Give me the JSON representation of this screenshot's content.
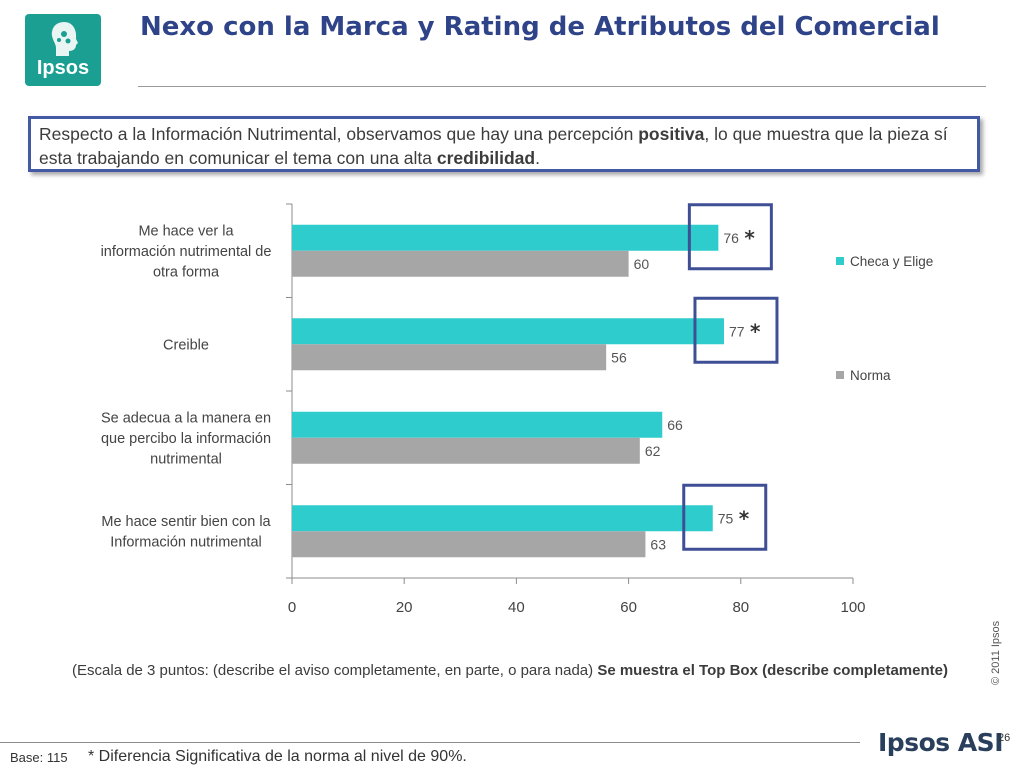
{
  "logo": {
    "text": "Ipsos"
  },
  "header": {
    "title": "Nexo con la Marca y Rating de Atributos del Comercial"
  },
  "callout": {
    "part1": "Respecto a la Información Nutrimental, observamos que hay una percepción ",
    "bold1": "positiva",
    "part2": ", lo que muestra que la pieza sí esta trabajando en comunicar el tema con una alta ",
    "bold2": "credibilidad",
    "part3": "."
  },
  "chart_data": {
    "type": "bar",
    "orientation": "horizontal",
    "categories": [
      [
        "Me hace ver  la",
        "información  nutrimental de",
        "otra forma"
      ],
      [
        "Creible"
      ],
      [
        "Se adecua a la manera en",
        "que percibo la información",
        "nutrimental"
      ],
      [
        "Me hace sentir bien con la",
        "Información  nutrimental"
      ]
    ],
    "series": [
      {
        "name": "Checa y Elige",
        "color": "#2ecccc",
        "values": [
          76,
          77,
          66,
          75
        ]
      },
      {
        "name": "Norma",
        "color": "#a6a6a6",
        "values": [
          60,
          56,
          62,
          63
        ]
      }
    ],
    "significant": [
      true,
      true,
      false,
      true
    ],
    "significance_marker": "*",
    "xlim": [
      0,
      100
    ],
    "xticks": [
      "0",
      "20",
      "40",
      "60",
      "80",
      "100"
    ],
    "legend_position": "right"
  },
  "note": {
    "text": "(Escala de 3 puntos: (describe el aviso completamente,  en parte, o para nada) ",
    "bold": "Se muestra el Top Box (describe completamente)"
  },
  "footer": {
    "copyright": "© 2011 Ipsos",
    "base": "Base: 115",
    "footnote": "* Diferencia Significativa de la norma al nivel de 90%.",
    "brand": "Ipsos ASI",
    "page": "26"
  }
}
